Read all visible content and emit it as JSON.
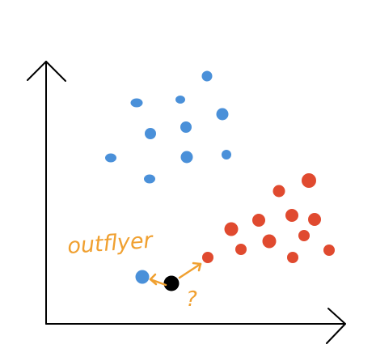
{
  "colors": {
    "axes": "#000000",
    "cluster_blue": "#4a90d9",
    "cluster_red": "#e04a2f",
    "query_point": "#000000",
    "annotation": "#f0a030"
  },
  "annotation": {
    "label": "outflyer",
    "question": "?"
  },
  "clusters": {
    "blue": {
      "point_count": 12
    },
    "red": {
      "point_count": 12
    }
  },
  "outlier": {
    "color": "blue"
  },
  "query": {
    "color": "black"
  }
}
